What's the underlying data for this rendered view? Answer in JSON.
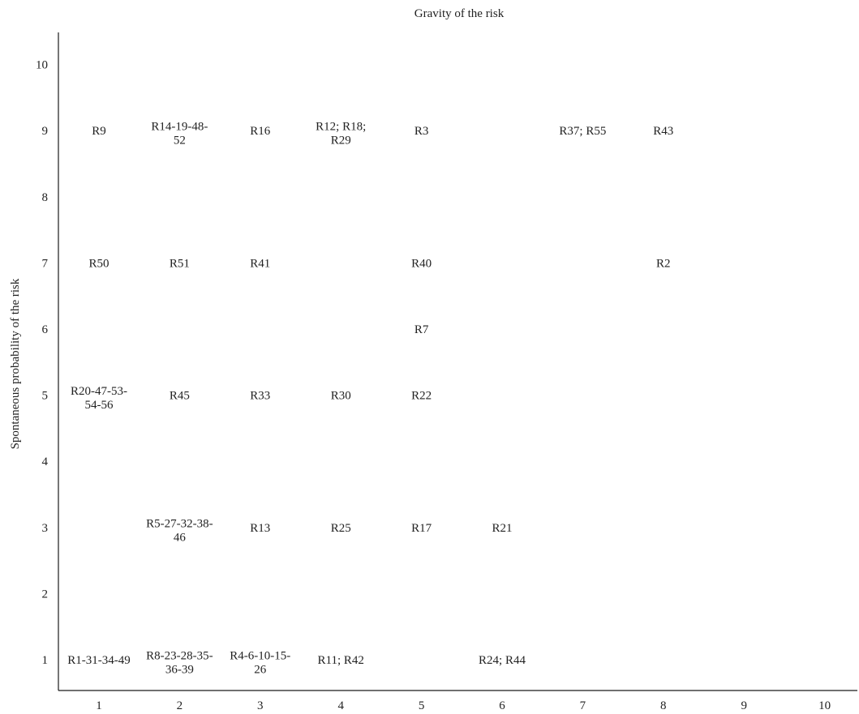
{
  "chart_data": {
    "type": "table",
    "xlabel": "Gravity of the risk",
    "ylabel": "Spontaneous probability of the risk",
    "x_ticks": [
      1,
      2,
      3,
      4,
      5,
      6,
      7,
      8,
      9,
      10
    ],
    "y_ticks": [
      1,
      2,
      3,
      4,
      5,
      6,
      7,
      8,
      9,
      10
    ],
    "xlim": [
      0.5,
      10.5
    ],
    "ylim": [
      0.5,
      10.5
    ],
    "grid": false,
    "points": [
      {
        "x": 1,
        "y": 9,
        "lines": [
          "R9"
        ]
      },
      {
        "x": 2,
        "y": 9,
        "lines": [
          "R14-19-48-",
          "52"
        ]
      },
      {
        "x": 3,
        "y": 9,
        "lines": [
          "R16"
        ]
      },
      {
        "x": 4,
        "y": 9,
        "lines": [
          "R12; R18;",
          "R29"
        ]
      },
      {
        "x": 5,
        "y": 9,
        "lines": [
          "R3"
        ]
      },
      {
        "x": 7,
        "y": 9,
        "lines": [
          "R37; R55"
        ]
      },
      {
        "x": 8,
        "y": 9,
        "lines": [
          "R43"
        ]
      },
      {
        "x": 1,
        "y": 7,
        "lines": [
          "R50"
        ]
      },
      {
        "x": 2,
        "y": 7,
        "lines": [
          "R51"
        ]
      },
      {
        "x": 3,
        "y": 7,
        "lines": [
          "R41"
        ]
      },
      {
        "x": 5,
        "y": 7,
        "lines": [
          "R40"
        ]
      },
      {
        "x": 8,
        "y": 7,
        "lines": [
          "R2"
        ]
      },
      {
        "x": 5,
        "y": 6,
        "lines": [
          "R7"
        ]
      },
      {
        "x": 1,
        "y": 5,
        "lines": [
          "R20-47-53-",
          "54-56"
        ]
      },
      {
        "x": 2,
        "y": 5,
        "lines": [
          "R45"
        ]
      },
      {
        "x": 3,
        "y": 5,
        "lines": [
          "R33"
        ]
      },
      {
        "x": 4,
        "y": 5,
        "lines": [
          "R30"
        ]
      },
      {
        "x": 5,
        "y": 5,
        "lines": [
          "R22"
        ]
      },
      {
        "x": 2,
        "y": 3,
        "lines": [
          "R5-27-32-38-",
          "46"
        ]
      },
      {
        "x": 3,
        "y": 3,
        "lines": [
          "R13"
        ]
      },
      {
        "x": 4,
        "y": 3,
        "lines": [
          "R25"
        ]
      },
      {
        "x": 5,
        "y": 3,
        "lines": [
          "R17"
        ]
      },
      {
        "x": 6,
        "y": 3,
        "lines": [
          "R21"
        ]
      },
      {
        "x": 1,
        "y": 1,
        "lines": [
          "R1-31-34-49"
        ]
      },
      {
        "x": 2,
        "y": 1,
        "lines": [
          "R8-23-28-35-",
          "36-39"
        ]
      },
      {
        "x": 3,
        "y": 1,
        "lines": [
          "R4-6-10-15-",
          "26"
        ]
      },
      {
        "x": 4,
        "y": 1,
        "lines": [
          "R11; R42"
        ]
      },
      {
        "x": 6,
        "y": 1,
        "lines": [
          "R24; R44"
        ]
      }
    ]
  }
}
